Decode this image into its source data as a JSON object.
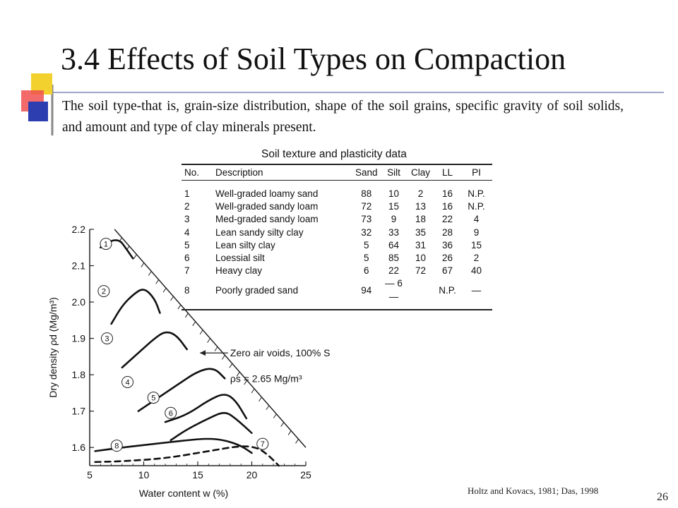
{
  "slide": {
    "title": "3.4 Effects of Soil Types on Compaction",
    "body": "The soil type-that is, grain-size distribution, shape of the soil grains, specific gravity of soil solids, and amount and type of clay minerals present.",
    "citation": "Holtz and Kovacs, 1981; Das, 1998",
    "page_number": "26"
  },
  "table": {
    "title": "Soil texture and plasticity data",
    "headers": [
      "No.",
      "Description",
      "Sand",
      "Silt",
      "Clay",
      "LL",
      "PI"
    ],
    "rows": [
      [
        "1",
        "Well-graded loamy sand",
        "88",
        "10",
        "2",
        "16",
        "N.P."
      ],
      [
        "2",
        "Well-graded sandy loam",
        "72",
        "15",
        "13",
        "16",
        "N.P."
      ],
      [
        "3",
        "Med-graded sandy loam",
        "73",
        "9",
        "18",
        "22",
        "4"
      ],
      [
        "4",
        "Lean sandy silty clay",
        "32",
        "33",
        "35",
        "28",
        "9"
      ],
      [
        "5",
        "Lean silty clay",
        "5",
        "64",
        "31",
        "36",
        "15"
      ],
      [
        "6",
        "Loessial silt",
        "5",
        "85",
        "10",
        "26",
        "2"
      ],
      [
        "7",
        "Heavy clay",
        "6",
        "22",
        "72",
        "67",
        "40"
      ],
      [
        "8",
        "Poorly graded sand",
        "94",
        "— 6 —",
        "",
        "N.P.",
        "—"
      ]
    ]
  },
  "chart_data": {
    "type": "line",
    "xlabel": "Water content w (%)",
    "ylabel": "Dry density ρd (Mg/m³)",
    "xlim": [
      5,
      25
    ],
    "ylim": [
      1.55,
      2.2
    ],
    "xticks": [
      "5",
      "10",
      "15",
      "20",
      "25"
    ],
    "yticks": [
      "1.6",
      "1.7",
      "1.8",
      "1.9",
      "2.0",
      "2.1",
      "2.2"
    ],
    "annotations": [
      "Zero air voids, 100% S",
      "ρs = 2.65 Mg/m³"
    ],
    "zav_line": {
      "name": "Zero air voids, 100% S",
      "x": [
        7.3,
        25
      ],
      "y": [
        2.2,
        1.6
      ]
    },
    "series": [
      {
        "name": "1",
        "dashed": false,
        "x": [
          6.0,
          7.0,
          7.8,
          8.3,
          9.0
        ],
        "y": [
          2.15,
          2.17,
          2.17,
          2.15,
          2.12
        ]
      },
      {
        "name": "2",
        "dashed": false,
        "x": [
          7.0,
          8.0,
          9.0,
          10.0,
          11.0,
          11.5
        ],
        "y": [
          1.94,
          1.99,
          2.02,
          2.04,
          2.01,
          1.97
        ]
      },
      {
        "name": "3",
        "dashed": false,
        "x": [
          8.0,
          9.5,
          11.0,
          12.0,
          13.0,
          14.0
        ],
        "y": [
          1.82,
          1.86,
          1.9,
          1.92,
          1.91,
          1.87
        ]
      },
      {
        "name": "4",
        "dashed": false,
        "x": [
          9.5,
          11.0,
          13.0,
          15.0,
          16.5,
          17.5
        ],
        "y": [
          1.7,
          1.73,
          1.77,
          1.81,
          1.82,
          1.79
        ]
      },
      {
        "name": "5",
        "dashed": false,
        "x": [
          12.0,
          14.0,
          16.0,
          17.5,
          18.5,
          19.5
        ],
        "y": [
          1.67,
          1.69,
          1.73,
          1.75,
          1.73,
          1.68
        ]
      },
      {
        "name": "6",
        "dashed": false,
        "x": [
          12.5,
          14.0,
          16.0,
          17.5,
          18.5,
          20.0
        ],
        "y": [
          1.62,
          1.65,
          1.68,
          1.7,
          1.68,
          1.64
        ]
      },
      {
        "name": "7",
        "dashed": true,
        "x": [
          5.5,
          8.0,
          12.0,
          16.0,
          19.0,
          20.5,
          21.5,
          22.5
        ],
        "y": [
          1.56,
          1.562,
          1.57,
          1.59,
          1.605,
          1.6,
          1.58,
          1.55
        ]
      },
      {
        "name": "8",
        "dashed": false,
        "x": [
          5.5,
          8.0,
          11.0,
          14.0,
          16.0,
          17.5,
          19.0,
          20.0
        ],
        "y": [
          1.59,
          1.6,
          1.61,
          1.62,
          1.625,
          1.62,
          1.605,
          1.585
        ]
      }
    ]
  },
  "colors": {
    "text": "#111111",
    "deco_yellow": "#f2d12e",
    "deco_red": "#f05050",
    "deco_blue": "#2d3fb0",
    "deco_line": "#9fa7c8"
  }
}
